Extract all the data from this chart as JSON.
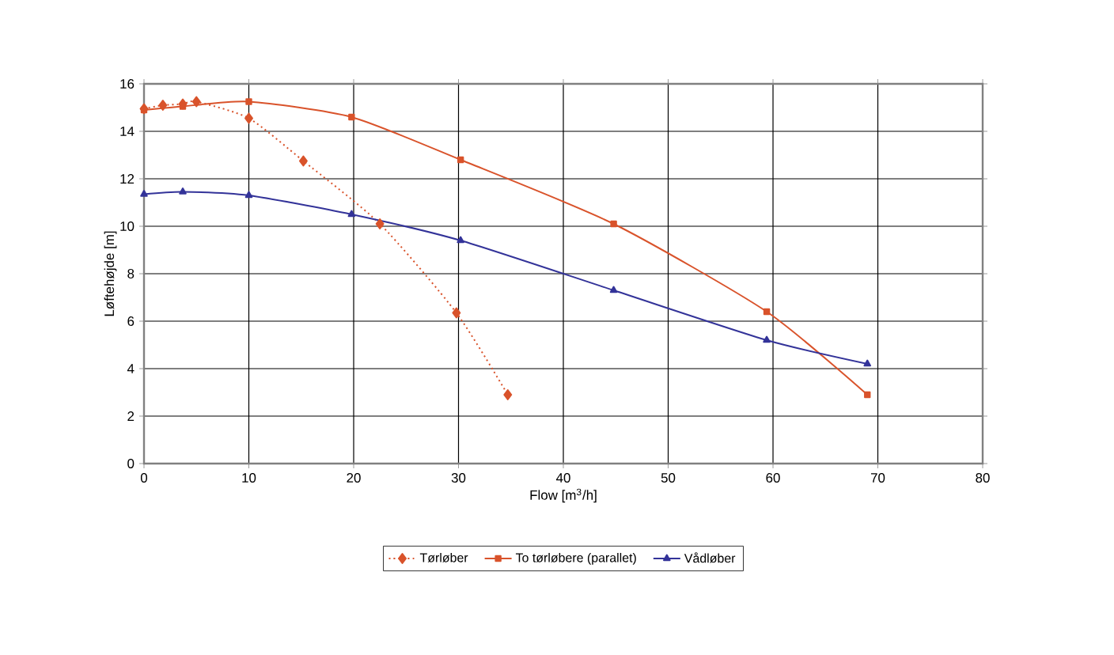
{
  "chart_data": {
    "type": "line",
    "xlabel": "Flow [m$^{3}$/h]",
    "ylabel": "Løftehøjde [m]",
    "xlim": [
      0,
      80
    ],
    "ylim": [
      0,
      16
    ],
    "xticks": [
      0,
      10,
      20,
      30,
      40,
      50,
      60,
      70,
      80
    ],
    "yticks": [
      0,
      2,
      4,
      6,
      8,
      10,
      12,
      14,
      16
    ],
    "grid": true,
    "legend": "bottom",
    "series": [
      {
        "name": "Tørløber",
        "color": "#d9532b",
        "marker": "diamond",
        "line_style": "dotted",
        "x": [
          0,
          1.8,
          3.7,
          5,
          10,
          15.2,
          22.5,
          29.8,
          34.7
        ],
        "values": [
          14.95,
          15.1,
          15.15,
          15.25,
          14.55,
          12.75,
          10.1,
          6.35,
          2.9
        ]
      },
      {
        "name": "To tørløbere (parallet)",
        "color": "#d9532b",
        "marker": "square",
        "line_style": "solid",
        "x": [
          0,
          3.7,
          10,
          19.8,
          30.2,
          44.8,
          59.4,
          69
        ],
        "values": [
          14.9,
          15.05,
          15.25,
          14.6,
          12.8,
          10.1,
          6.4,
          2.9
        ]
      },
      {
        "name": "Vådløber",
        "color": "#333399",
        "marker": "triangle",
        "line_style": "solid",
        "x": [
          0,
          3.7,
          10,
          19.8,
          30.2,
          44.8,
          59.4,
          69
        ],
        "values": [
          11.35,
          11.45,
          11.3,
          10.5,
          9.4,
          7.3,
          5.2,
          4.2
        ]
      }
    ]
  }
}
